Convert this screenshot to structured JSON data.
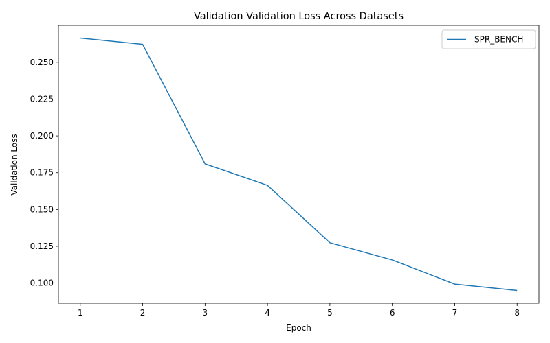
{
  "chart_data": {
    "type": "line",
    "title": "Validation Validation Loss Across Datasets",
    "xlabel": "Epoch",
    "ylabel": "Validation Loss",
    "x": [
      1,
      2,
      3,
      4,
      5,
      6,
      7,
      8
    ],
    "series": [
      {
        "name": "SPR_BENCH",
        "values": [
          0.2665,
          0.2622,
          0.181,
          0.1664,
          0.1274,
          0.1157,
          0.0993,
          0.0949
        ],
        "color": "#1f77b4"
      }
    ],
    "xticks": [
      1,
      2,
      3,
      4,
      5,
      6,
      7,
      8
    ],
    "yticks": [
      0.1,
      0.125,
      0.15,
      0.175,
      0.2,
      0.225,
      0.25
    ],
    "xlim": [
      0.65,
      8.35
    ],
    "ylim": [
      0.0863,
      0.2751
    ],
    "grid": false,
    "legend_position": "top-right"
  }
}
